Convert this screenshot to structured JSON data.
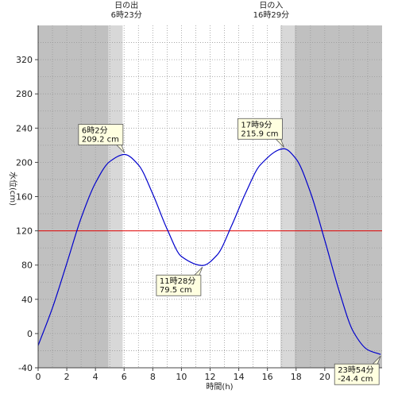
{
  "chart_data": {
    "type": "line",
    "xlabel": "時間(h)",
    "ylabel": "水位(cm)",
    "xlim": [
      0,
      24
    ],
    "ylim": [
      -40,
      360
    ],
    "x_ticks": [
      0,
      2,
      4,
      6,
      8,
      10,
      12,
      14,
      16,
      18,
      20
    ],
    "y_ticks": [
      -40,
      0,
      40,
      80,
      120,
      160,
      200,
      240,
      280,
      320
    ],
    "grid": true,
    "reference_line": {
      "value": 120,
      "color": "#e00000"
    },
    "line_color": "#0000cc",
    "shading": {
      "night_color": "#c0c0c0",
      "twilight_color": "#d8d8d8",
      "day_color": "#ffffff",
      "sunrise_twilight": [
        4.9,
        5.9
      ],
      "sunset_twilight": [
        16.9,
        17.9
      ]
    },
    "sunrise": {
      "title": "日の出",
      "time": "6時23分",
      "x": 6.383
    },
    "sunset": {
      "title": "日の入",
      "time": "16時29分",
      "x": 16.483
    },
    "series": [
      {
        "points": [
          [
            0,
            -14
          ],
          [
            1,
            30
          ],
          [
            2,
            82
          ],
          [
            3,
            135
          ],
          [
            4,
            176
          ],
          [
            5,
            201
          ],
          [
            6.033,
            209.2
          ],
          [
            7,
            197
          ],
          [
            8,
            163
          ],
          [
            9,
            122
          ],
          [
            10,
            90
          ],
          [
            11.467,
            79.5
          ],
          [
            12.5,
            92
          ],
          [
            13.5,
            126
          ],
          [
            14.5,
            165
          ],
          [
            15.5,
            197
          ],
          [
            17.15,
            215.9
          ],
          [
            18,
            204
          ],
          [
            19,
            165
          ],
          [
            20,
            109
          ],
          [
            21,
            50
          ],
          [
            22,
            2
          ],
          [
            23,
            -19
          ],
          [
            23.9,
            -24.4
          ]
        ]
      }
    ],
    "annotations": [
      {
        "label": "6時2分",
        "value": "209.2 cm",
        "x": 6.033,
        "y": 209.2,
        "position": "above-left"
      },
      {
        "label": "11時28分",
        "value": "79.5 cm",
        "x": 11.467,
        "y": 79.5,
        "position": "below-left"
      },
      {
        "label": "17時9分",
        "value": "215.9 cm",
        "x": 17.15,
        "y": 215.9,
        "position": "above-left"
      },
      {
        "label": "23時54分",
        "value": "-24.4 cm",
        "x": 23.9,
        "y": -24.4,
        "position": "below-left"
      }
    ]
  }
}
